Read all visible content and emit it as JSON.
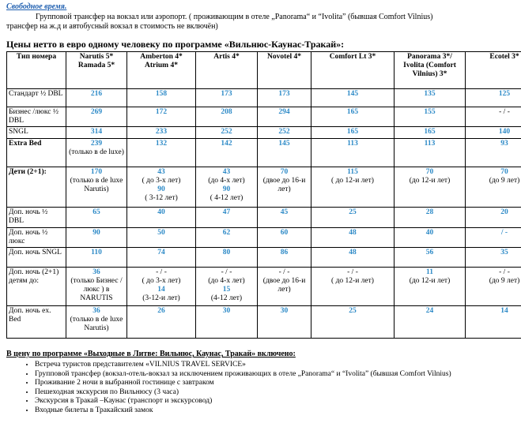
{
  "intro": {
    "title": "Свободное время.",
    "lines": [
      "Групповой трансфер на вокзал или аэропорт. ( проживающим в отеле „Panorama“ и “Ivolita” (бывшая Comfort Vilnius)",
      "трансфер на ж.д и автобусный вокзал в стоимость не включён)"
    ]
  },
  "heading": "Цены  нетто в евро одному человеку по программе «Вильнюс-Каунас-Тракай»:",
  "table": {
    "header": [
      "Тип номера",
      "Narutis 5* Ramada 5*",
      "Amberton 4* Atrium 4*",
      "Artis 4*",
      "Novotel 4*",
      "Comfort Lt 3*",
      "Panorama 3*/ Ivolita (Comfort Vilnius) 3*",
      "Ecotel 3*"
    ],
    "rows": [
      {
        "label": "Стандарт ½ DBL",
        "cells": [
          [
            {
              "v": "216"
            }
          ],
          [
            {
              "v": "158"
            }
          ],
          [
            {
              "v": "173"
            }
          ],
          [
            {
              "v": "173"
            }
          ],
          [
            {
              "v": "145"
            }
          ],
          [
            {
              "v": "135"
            }
          ],
          [
            {
              "v": "125"
            }
          ]
        ]
      },
      {
        "label": "Бизнес /люкс ½ DBL",
        "cells": [
          [
            {
              "v": "269"
            }
          ],
          [
            {
              "v": "172"
            }
          ],
          [
            {
              "v": "208"
            }
          ],
          [
            {
              "v": "294"
            }
          ],
          [
            {
              "v": "165"
            }
          ],
          [
            {
              "v": "155"
            }
          ],
          [
            "- / -"
          ]
        ]
      },
      {
        "label": "SNGL",
        "cells": [
          [
            {
              "v": "314"
            }
          ],
          [
            {
              "v": "233"
            }
          ],
          [
            {
              "v": "252"
            }
          ],
          [
            {
              "v": "252"
            }
          ],
          [
            {
              "v": "165"
            }
          ],
          [
            {
              "v": "165"
            }
          ],
          [
            {
              "v": "140"
            }
          ]
        ]
      },
      {
        "label": "Extra Bed",
        "bold": true,
        "cells": [
          [
            {
              "v": "239"
            },
            "(только в de luxe)"
          ],
          [
            {
              "v": "132"
            }
          ],
          [
            {
              "v": "142"
            }
          ],
          [
            {
              "v": "145"
            }
          ],
          [
            {
              "v": "113"
            }
          ],
          [
            {
              "v": "113"
            }
          ],
          [
            {
              "v": "93"
            }
          ]
        ]
      },
      {
        "label": "Дети (2+1):",
        "bold": true,
        "cells": [
          [
            {
              "v": "170"
            },
            "(только в de luxe Narutis)"
          ],
          [
            {
              "v": "43"
            },
            "( до 3-х лет)",
            {
              "v": "90"
            },
            "( 3-12 лет)"
          ],
          [
            {
              "v": "43"
            },
            "(до 4-х лет)",
            {
              "v": "90"
            },
            "( 4-12 лет)"
          ],
          [
            {
              "v": "70"
            },
            "(двое до 16-и лет)"
          ],
          [
            {
              "v": "115"
            },
            "( до 12-и лет)"
          ],
          [
            {
              "v": "70"
            },
            "(до 12-и лет)"
          ],
          [
            {
              "v": "70"
            },
            "(до 9 лет)"
          ]
        ]
      },
      {
        "label": "Доп. ночь ½ DBL",
        "cells": [
          [
            {
              "v": "65"
            }
          ],
          [
            {
              "v": "40"
            }
          ],
          [
            {
              "v": "47"
            }
          ],
          [
            {
              "v": "45"
            }
          ],
          [
            {
              "v": "25"
            }
          ],
          [
            {
              "v": "28"
            }
          ],
          [
            {
              "v": "20"
            }
          ]
        ]
      },
      {
        "label": "Доп. ночь ½ люкс",
        "cells": [
          [
            {
              "v": "90"
            }
          ],
          [
            {
              "v": "50"
            }
          ],
          [
            {
              "v": "62"
            }
          ],
          [
            {
              "v": "60"
            }
          ],
          [
            {
              "v": "48"
            }
          ],
          [
            {
              "v": "40"
            }
          ],
          [
            {
              "v": "/ -"
            }
          ]
        ]
      },
      {
        "label": "Доп. ночь SNGL",
        "cells": [
          [
            {
              "v": "110"
            }
          ],
          [
            {
              "v": "74"
            }
          ],
          [
            {
              "v": "80"
            }
          ],
          [
            {
              "v": "86"
            }
          ],
          [
            {
              "v": "48"
            }
          ],
          [
            {
              "v": "56"
            }
          ],
          [
            {
              "v": "35"
            }
          ]
        ]
      },
      {
        "label": "Доп. ночь (2+1) детям до:",
        "cells": [
          [
            {
              "v": "36"
            },
            "(только Бизнес /люкс ) в NARUTIS"
          ],
          [
            "- / -",
            "( до 3-х лет)",
            {
              "v": "14"
            },
            "(3-12-и лет)"
          ],
          [
            "- / -",
            "(до 4-х лет)",
            {
              "v": "15"
            },
            "(4-12 лет)"
          ],
          [
            "- / -",
            "(двое до 16-и лет)"
          ],
          [
            "- / -",
            "( до 12-и лет)"
          ],
          [
            {
              "v": "11"
            },
            "(до 12-и лет)"
          ],
          [
            "- / -",
            "(до 9 лет)"
          ]
        ]
      },
      {
        "label": "Доп. ночь ex. Bed",
        "cells": [
          [
            {
              "v": "36"
            },
            "(только в de luxe Narutis)"
          ],
          [
            {
              "v": "26"
            }
          ],
          [
            {
              "v": "30"
            }
          ],
          [
            {
              "v": "30"
            }
          ],
          [
            {
              "v": "25"
            }
          ],
          [
            {
              "v": "24"
            }
          ],
          [
            {
              "v": "14"
            }
          ]
        ]
      }
    ]
  },
  "included": {
    "title": "В цену  по программе «Выходные в Литве: Вильнюс, Каунас, Тракай» включено:",
    "items": [
      "Встреча туристов представителем «VILNIUS TRAVEL SERVICE»",
      "Групповой трансфер (вокзал-отель-вокзал  за исключением проживающих в отеле „Panorama“ и “Ivolita” (бывшая Comfort Vilnius)",
      "Проживание 2 ночи в выбранной гостинице  с завтраком",
      "Пешеходная экскурсия по Вильнюсу (3 часа)",
      "Экскурсия в Тракай –Каунас (транспорт и экскурсовод)",
      "Входные билеты в Тракайский замок"
    ]
  }
}
